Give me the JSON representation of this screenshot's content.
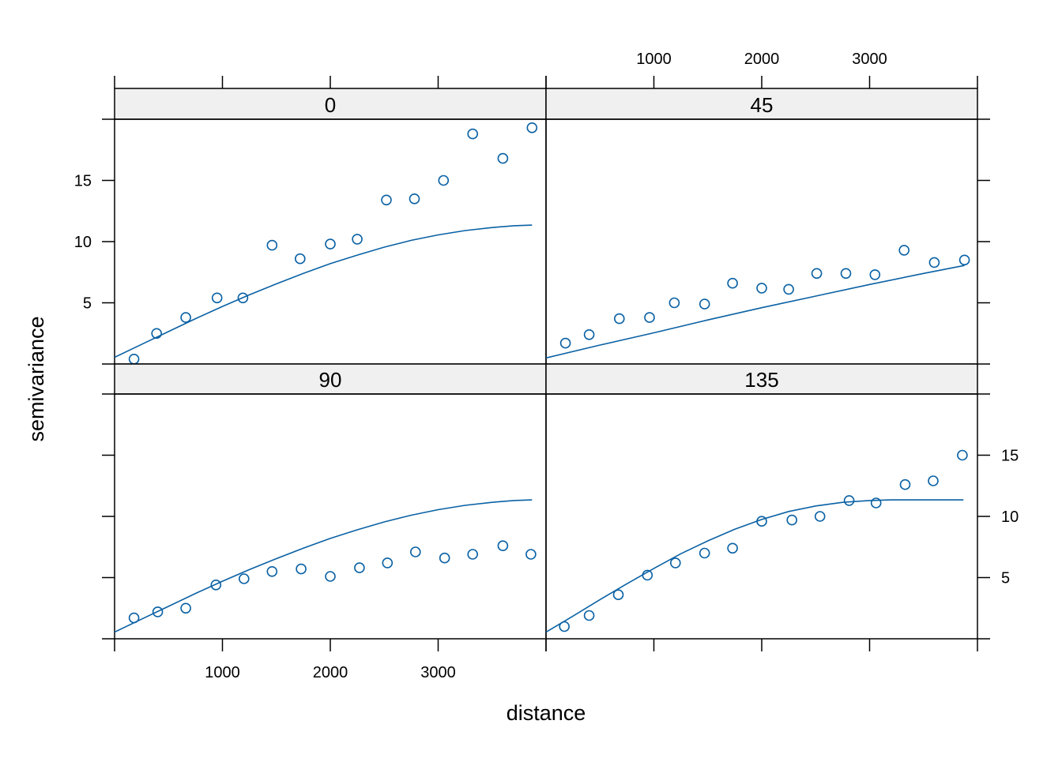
{
  "chart_data": {
    "type": "scatter",
    "layout": "2x2 trellis",
    "xlabel": "distance",
    "ylabel": "semivariance",
    "xlim": [
      0,
      4000
    ],
    "ylim": [
      0,
      20
    ],
    "x_ticks": [
      1000,
      2000,
      3000
    ],
    "y_ticks": [
      5,
      10,
      15
    ],
    "point_color": "#0a61a4",
    "line_color": "#0a61a4",
    "strip_color": "#f0f0f0",
    "panels": [
      {
        "label": "0",
        "points": [
          [
            180,
            0.4
          ],
          [
            390,
            2.5
          ],
          [
            660,
            3.8
          ],
          [
            950,
            5.4
          ],
          [
            1190,
            5.4
          ],
          [
            1460,
            9.7
          ],
          [
            1720,
            8.6
          ],
          [
            2000,
            9.8
          ],
          [
            2250,
            10.2
          ],
          [
            2520,
            13.4
          ],
          [
            2780,
            13.5
          ],
          [
            3050,
            15.0
          ],
          [
            3320,
            18.8
          ],
          [
            3600,
            16.8
          ],
          [
            3870,
            19.3
          ]
        ],
        "fit": [
          [
            0,
            0.55
          ],
          [
            250,
            1.6
          ],
          [
            500,
            2.65
          ],
          [
            750,
            3.7
          ],
          [
            1000,
            4.7
          ],
          [
            1250,
            5.65
          ],
          [
            1500,
            6.55
          ],
          [
            1750,
            7.4
          ],
          [
            2000,
            8.2
          ],
          [
            2250,
            8.9
          ],
          [
            2500,
            9.55
          ],
          [
            2750,
            10.1
          ],
          [
            3000,
            10.55
          ],
          [
            3250,
            10.9
          ],
          [
            3500,
            11.15
          ],
          [
            3700,
            11.3
          ],
          [
            3870,
            11.35
          ]
        ]
      },
      {
        "label": "45",
        "points": [
          [
            180,
            1.7
          ],
          [
            400,
            2.4
          ],
          [
            680,
            3.7
          ],
          [
            960,
            3.8
          ],
          [
            1190,
            5.0
          ],
          [
            1470,
            4.9
          ],
          [
            1730,
            6.6
          ],
          [
            2000,
            6.2
          ],
          [
            2250,
            6.1
          ],
          [
            2510,
            7.4
          ],
          [
            2780,
            7.4
          ],
          [
            3050,
            7.3
          ],
          [
            3320,
            9.3
          ],
          [
            3600,
            8.3
          ],
          [
            3880,
            8.5
          ]
        ],
        "fit": [
          [
            0,
            0.5
          ],
          [
            500,
            1.55
          ],
          [
            1000,
            2.55
          ],
          [
            1500,
            3.6
          ],
          [
            2000,
            4.6
          ],
          [
            2500,
            5.55
          ],
          [
            3000,
            6.5
          ],
          [
            3500,
            7.4
          ],
          [
            3880,
            8.05
          ]
        ]
      },
      {
        "label": "90",
        "points": [
          [
            180,
            1.7
          ],
          [
            400,
            2.2
          ],
          [
            660,
            2.5
          ],
          [
            940,
            4.4
          ],
          [
            1200,
            4.9
          ],
          [
            1460,
            5.5
          ],
          [
            1730,
            5.7
          ],
          [
            2000,
            5.1
          ],
          [
            2270,
            5.8
          ],
          [
            2530,
            6.2
          ],
          [
            2790,
            7.1
          ],
          [
            3060,
            6.6
          ],
          [
            3320,
            6.9
          ],
          [
            3600,
            7.6
          ],
          [
            3860,
            6.9
          ]
        ],
        "fit": [
          [
            0,
            0.55
          ],
          [
            250,
            1.6
          ],
          [
            500,
            2.65
          ],
          [
            750,
            3.7
          ],
          [
            1000,
            4.7
          ],
          [
            1250,
            5.65
          ],
          [
            1500,
            6.55
          ],
          [
            1750,
            7.4
          ],
          [
            2000,
            8.2
          ],
          [
            2250,
            8.9
          ],
          [
            2500,
            9.55
          ],
          [
            2750,
            10.1
          ],
          [
            3000,
            10.55
          ],
          [
            3250,
            10.9
          ],
          [
            3500,
            11.15
          ],
          [
            3700,
            11.3
          ],
          [
            3870,
            11.35
          ]
        ]
      },
      {
        "label": "135",
        "points": [
          [
            170,
            1.0
          ],
          [
            400,
            1.9
          ],
          [
            670,
            3.6
          ],
          [
            940,
            5.2
          ],
          [
            1200,
            6.2
          ],
          [
            1470,
            7.0
          ],
          [
            1730,
            7.4
          ],
          [
            2000,
            9.6
          ],
          [
            2280,
            9.7
          ],
          [
            2540,
            10.0
          ],
          [
            2810,
            11.3
          ],
          [
            3060,
            11.1
          ],
          [
            3330,
            12.6
          ],
          [
            3590,
            12.9
          ],
          [
            3860,
            15.0
          ]
        ],
        "fit": [
          [
            0,
            0.55
          ],
          [
            250,
            1.85
          ],
          [
            500,
            3.2
          ],
          [
            750,
            4.5
          ],
          [
            1000,
            5.75
          ],
          [
            1250,
            6.95
          ],
          [
            1500,
            8.0
          ],
          [
            1750,
            8.95
          ],
          [
            2000,
            9.75
          ],
          [
            2250,
            10.4
          ],
          [
            2500,
            10.85
          ],
          [
            2750,
            11.15
          ],
          [
            3000,
            11.3
          ],
          [
            3200,
            11.35
          ],
          [
            3500,
            11.35
          ],
          [
            3870,
            11.35
          ]
        ]
      }
    ]
  }
}
